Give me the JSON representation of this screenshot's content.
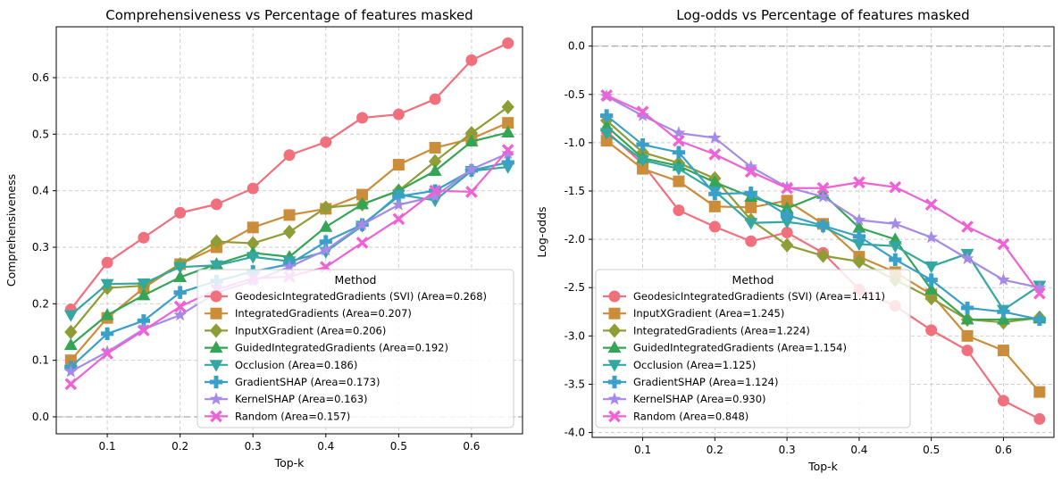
{
  "chart_data": [
    {
      "type": "line",
      "title": "Comprehensiveness vs Percentage of features masked",
      "xlabel": "Top-k",
      "ylabel": "Comprehensiveness",
      "xlim": [
        0.03,
        0.67
      ],
      "ylim": [
        -0.03,
        0.69
      ],
      "xticks": [
        0.1,
        0.2,
        0.3,
        0.4,
        0.5,
        0.6
      ],
      "yticks": [
        0.0,
        0.1,
        0.2,
        0.3,
        0.4,
        0.5,
        0.6
      ],
      "grid": true,
      "reference_line_y": 0,
      "legend": {
        "title": "Method",
        "placement": "lower-right"
      },
      "x": [
        0.05,
        0.1,
        0.15,
        0.2,
        0.25,
        0.3,
        0.35,
        0.4,
        0.45,
        0.5,
        0.55,
        0.6,
        0.65
      ],
      "series": [
        {
          "name": "GeodesicIntegratedGradients (SVI) (Area=0.268)",
          "color": "#f0707e",
          "marker": "circle",
          "values": [
            0.19,
            0.273,
            0.317,
            0.361,
            0.376,
            0.404,
            0.463,
            0.486,
            0.529,
            0.535,
            0.562,
            0.631,
            0.661
          ]
        },
        {
          "name": "IntegratedGradients (Area=0.207)",
          "color": "#cc8d3a",
          "marker": "square",
          "values": [
            0.1,
            0.175,
            0.228,
            0.27,
            0.3,
            0.335,
            0.357,
            0.368,
            0.393,
            0.446,
            0.476,
            0.492,
            0.52
          ]
        },
        {
          "name": "InputXGradient (Area=0.206)",
          "color": "#8e9d35",
          "marker": "diamond",
          "values": [
            0.15,
            0.228,
            0.232,
            0.27,
            0.31,
            0.307,
            0.327,
            0.37,
            0.376,
            0.4,
            0.452,
            0.502,
            0.548
          ]
        },
        {
          "name": "GuidedIntegratedGradients (Area=0.192)",
          "color": "#34a556",
          "marker": "triangle-up",
          "values": [
            0.127,
            0.18,
            0.215,
            0.247,
            0.27,
            0.29,
            0.283,
            0.336,
            0.376,
            0.4,
            0.435,
            0.487,
            0.503
          ]
        },
        {
          "name": "Occlusion (Area=0.186)",
          "color": "#34a8a0",
          "marker": "triangle-down",
          "values": [
            0.18,
            0.235,
            0.236,
            0.265,
            0.268,
            0.283,
            0.275,
            0.292,
            0.338,
            0.393,
            0.383,
            0.435,
            0.442
          ]
        },
        {
          "name": "GradientSHAP (Area=0.173)",
          "color": "#3aa0c8",
          "marker": "plus",
          "values": [
            0.088,
            0.147,
            0.17,
            0.22,
            0.24,
            0.257,
            0.27,
            0.31,
            0.34,
            0.39,
            0.4,
            0.436,
            0.45
          ]
        },
        {
          "name": "KernelSHAP (Area=0.163)",
          "color": "#a68ae8",
          "marker": "star",
          "values": [
            0.08,
            0.115,
            0.155,
            0.18,
            0.22,
            0.24,
            0.265,
            0.295,
            0.34,
            0.375,
            0.39,
            0.438,
            0.466
          ]
        },
        {
          "name": "Random (Area=0.157)",
          "color": "#ee62d6",
          "marker": "x",
          "values": [
            0.058,
            0.112,
            0.153,
            0.195,
            0.225,
            0.245,
            0.248,
            0.265,
            0.308,
            0.35,
            0.4,
            0.398,
            0.472
          ]
        }
      ]
    },
    {
      "type": "line",
      "title": "Log-odds vs Percentage of features masked",
      "xlabel": "Top-k",
      "ylabel": "Log-odds",
      "xlim": [
        0.03,
        0.67
      ],
      "ylim": [
        -4.05,
        0.2
      ],
      "xticks": [
        0.1,
        0.2,
        0.3,
        0.4,
        0.5,
        0.6
      ],
      "yticks": [
        0.0,
        -0.5,
        -1.0,
        -1.5,
        -2.0,
        -2.5,
        -3.0,
        -3.5,
        -4.0
      ],
      "grid": true,
      "reference_line_y": 0,
      "legend": {
        "title": "Method",
        "placement": "lower-left"
      },
      "x": [
        0.05,
        0.1,
        0.15,
        0.2,
        0.25,
        0.3,
        0.35,
        0.4,
        0.45,
        0.5,
        0.55,
        0.6,
        0.65
      ],
      "series": [
        {
          "name": "GeodesicIntegratedGradients (SVI) (Area=1.411)",
          "color": "#f0707e",
          "marker": "circle",
          "values": [
            -0.88,
            -1.22,
            -1.7,
            -1.87,
            -2.02,
            -1.93,
            -2.14,
            -2.52,
            -2.69,
            -2.94,
            -3.15,
            -3.67,
            -3.86
          ]
        },
        {
          "name": "InputXGradient (Area=1.245)",
          "color": "#cc8d3a",
          "marker": "square",
          "values": [
            -0.98,
            -1.27,
            -1.4,
            -1.66,
            -1.67,
            -1.6,
            -1.84,
            -2.18,
            -2.34,
            -2.57,
            -3.0,
            -3.15,
            -3.58
          ]
        },
        {
          "name": "IntegratedGradients (Area=1.224)",
          "color": "#8e9d35",
          "marker": "diamond",
          "values": [
            -0.77,
            -1.1,
            -1.21,
            -1.37,
            -1.8,
            -2.06,
            -2.17,
            -2.23,
            -2.42,
            -2.61,
            -2.83,
            -2.86,
            -2.81
          ]
        },
        {
          "name": "GuidedIntegratedGradients (Area=1.154)",
          "color": "#34a556",
          "marker": "triangle-up",
          "values": [
            -0.83,
            -1.16,
            -1.24,
            -1.41,
            -1.56,
            -1.68,
            -1.53,
            -1.88,
            -2.0,
            -2.52,
            -2.83,
            -2.83,
            -2.82
          ]
        },
        {
          "name": "Occlusion (Area=1.125)",
          "color": "#34a8a0",
          "marker": "triangle-down",
          "values": [
            -0.9,
            -1.18,
            -1.27,
            -1.5,
            -1.83,
            -1.82,
            -1.87,
            -2.05,
            -2.07,
            -2.28,
            -2.15,
            -2.73,
            -2.48
          ]
        },
        {
          "name": "GradientSHAP (Area=1.124)",
          "color": "#3aa0c8",
          "marker": "plus",
          "values": [
            -0.72,
            -1.02,
            -1.1,
            -1.53,
            -1.52,
            -1.75,
            -1.86,
            -1.97,
            -2.21,
            -2.42,
            -2.71,
            -2.75,
            -2.83
          ]
        },
        {
          "name": "KernelSHAP (Area=0.930)",
          "color": "#a68ae8",
          "marker": "star",
          "values": [
            -0.52,
            -0.72,
            -0.9,
            -0.95,
            -1.25,
            -1.46,
            -1.56,
            -1.8,
            -1.84,
            -1.98,
            -2.2,
            -2.42,
            -2.5
          ]
        },
        {
          "name": "Random (Area=0.848)",
          "color": "#ee62d6",
          "marker": "x",
          "values": [
            -0.51,
            -0.68,
            -0.98,
            -1.12,
            -1.3,
            -1.47,
            -1.47,
            -1.41,
            -1.46,
            -1.64,
            -1.87,
            -2.05,
            -2.56
          ]
        }
      ]
    }
  ]
}
